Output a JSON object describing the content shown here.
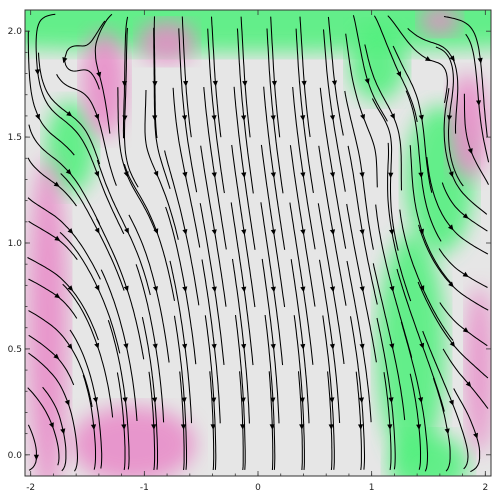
{
  "chart_data": {
    "type": "streamplot",
    "title": "",
    "xlabel": "",
    "ylabel": "",
    "xlim": [
      -2.05,
      2.05
    ],
    "ylim": [
      -0.1,
      2.1
    ],
    "x_ticks": [
      -2,
      -1,
      0,
      1,
      2
    ],
    "y_ticks": [
      0.0,
      0.5,
      1.0,
      1.5,
      2.0
    ],
    "x_tick_labels": [
      "-2",
      "-1",
      "0",
      "1",
      "2"
    ],
    "y_tick_labels": [
      "0.0",
      "0.5",
      "1.0",
      "1.5",
      "2.0"
    ],
    "background_colormap": [
      "#e889c8",
      "#e6e6e6",
      "#4df07a"
    ],
    "stream_color": "#000000",
    "grid": false,
    "vortex_centers": [
      {
        "x": -1.7,
        "y": 1.85,
        "sense": "ccw"
      },
      {
        "x": -1.1,
        "y": 1.4,
        "sense": "ccw"
      },
      {
        "x": 1.15,
        "y": 1.5,
        "sense": "cw"
      },
      {
        "x": 1.65,
        "y": 1.82,
        "sense": "cw"
      }
    ],
    "saddle_points": [
      {
        "x": -1.65,
        "y": 1.45
      },
      {
        "x": 1.35,
        "y": 0.95
      }
    ]
  }
}
